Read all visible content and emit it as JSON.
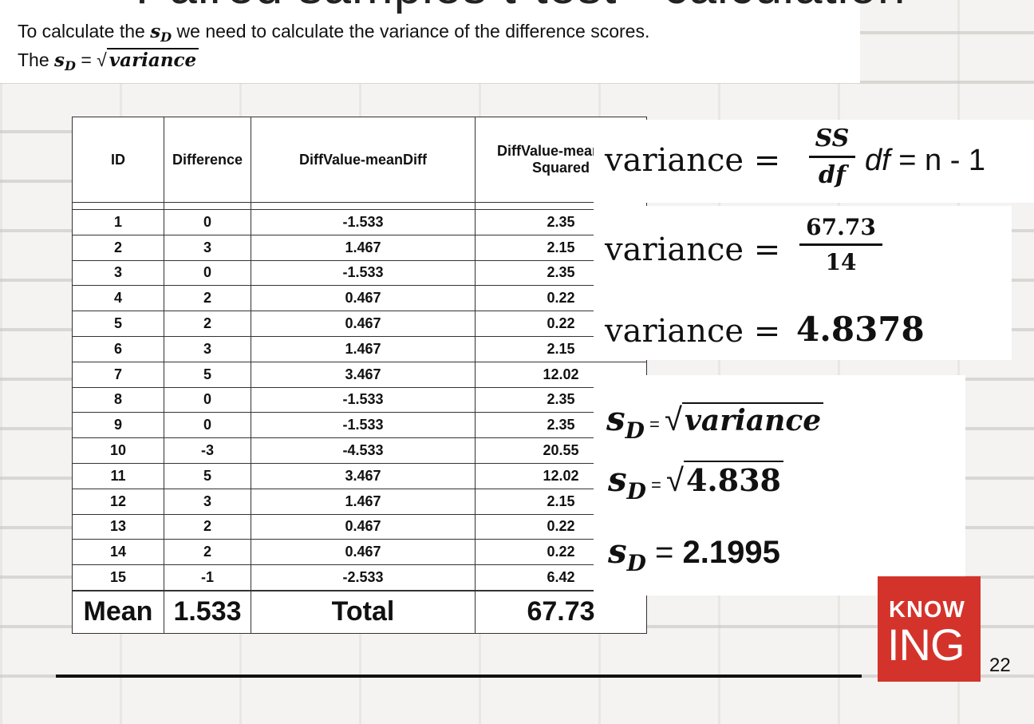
{
  "title": "Paired samples t-test - calculation",
  "intro": {
    "line1_pre": "To calculate the ",
    "sd_s": "s",
    "sd_sub": "D",
    "line1_post": " we need to calculate the variance of the difference scores.",
    "line2_pre": "The ",
    "line2_eq": " = ",
    "radical": "√",
    "variance_word": "variance"
  },
  "table": {
    "headers": [
      "ID",
      "Difference",
      "DiffValue-meanDiff",
      "DiffValue-meanDiff Squared"
    ],
    "rows": [
      [
        "1",
        "0",
        "-1.533",
        "2.35"
      ],
      [
        "2",
        "3",
        "1.467",
        "2.15"
      ],
      [
        "3",
        "0",
        "-1.533",
        "2.35"
      ],
      [
        "4",
        "2",
        "0.467",
        "0.22"
      ],
      [
        "5",
        "2",
        "0.467",
        "0.22"
      ],
      [
        "6",
        "3",
        "1.467",
        "2.15"
      ],
      [
        "7",
        "5",
        "3.467",
        "12.02"
      ],
      [
        "8",
        "0",
        "-1.533",
        "2.35"
      ],
      [
        "9",
        "0",
        "-1.533",
        "2.35"
      ],
      [
        "10",
        "-3",
        "-4.533",
        "20.55"
      ],
      [
        "11",
        "5",
        "3.467",
        "12.02"
      ],
      [
        "12",
        "3",
        "1.467",
        "2.15"
      ],
      [
        "13",
        "2",
        "0.467",
        "0.22"
      ],
      [
        "14",
        "2",
        "0.467",
        "0.22"
      ],
      [
        "15",
        "-1",
        "-2.533",
        "6.42"
      ]
    ],
    "summary": [
      "Mean",
      "1.533",
      "Total",
      "67.73"
    ]
  },
  "formula1": {
    "label": "variance =",
    "numerator": "SS",
    "denominator": "df",
    "df_text": "df",
    "df_rest": " = n - 1"
  },
  "formula2": {
    "label": "variance =",
    "numerator": "67.73",
    "denominator": "14"
  },
  "formula3": {
    "label": "variance =",
    "value": "4.8378"
  },
  "sd1": {
    "s": "s",
    "sub": "D",
    "eq": " = ",
    "radical": "√",
    "arg": "variance"
  },
  "sd2": {
    "s": "s",
    "sub": "D",
    "eq": " = ",
    "radical": "√",
    "arg": "4.838"
  },
  "sd3": {
    "s": "s",
    "sub": "D",
    "eq": " = ",
    "value": "2.1995"
  },
  "logo": {
    "top": "KNOW",
    "bottom": "ING"
  },
  "page_number": "22",
  "colors": {
    "logo_red": "#d4332b"
  }
}
